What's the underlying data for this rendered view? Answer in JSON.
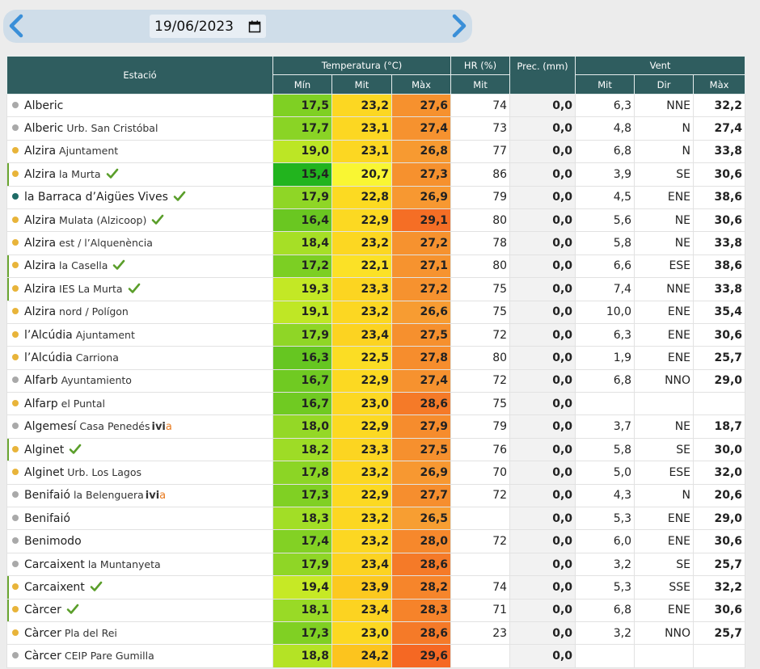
{
  "date_bar": {
    "date_value": "19/06/2023",
    "prev_icon": "chevron-left-icon",
    "next_icon": "chevron-right-icon",
    "calendar_icon": "calendar-icon"
  },
  "colors": {
    "header_bg": "#2f5d5f",
    "dot_yellow": "#e8b43a",
    "dot_gray": "#a9a9a9",
    "dot_teal": "#1f6b66",
    "check_green": "#5a9e2a"
  },
  "table": {
    "headers": {
      "station": "Estació",
      "temperature": "Temperatura (°C)",
      "humidity": "HR (%)",
      "precipitation": "Prec. (mm)",
      "wind": "Vent",
      "t_min": "Mín",
      "t_mit": "Mit",
      "t_max": "Màx",
      "hr_mit": "Mit",
      "w_mit": "Mit",
      "w_dir": "Dir",
      "w_max": "Màx"
    },
    "rows": [
      {
        "name": "Alberic",
        "sub": "",
        "ivia": false,
        "check": false,
        "dot": "gray",
        "hl": false,
        "tmin": "17,5",
        "tmit": "23,2",
        "tmax": "27,6",
        "hr": "74",
        "prec": "0,0",
        "wmit": "6,3",
        "wdir": "NNE",
        "wmax": "32,2",
        "cmin": "#7fd023",
        "cmit": "#fcd722",
        "cmax": "#f6912e"
      },
      {
        "name": "Alberic",
        "sub": "Urb. San Cristóbal",
        "ivia": false,
        "check": false,
        "dot": "gray",
        "hl": false,
        "tmin": "17,7",
        "tmit": "23,1",
        "tmax": "27,4",
        "hr": "73",
        "prec": "0,0",
        "wmit": "4,8",
        "wdir": "N",
        "wmax": "27,4",
        "cmin": "#8ad425",
        "cmit": "#fcd722",
        "cmax": "#f6922f"
      },
      {
        "name": "Alzira",
        "sub": "Ajuntament",
        "ivia": false,
        "check": false,
        "dot": "yellow",
        "hl": false,
        "tmin": "19,0",
        "tmit": "23,1",
        "tmax": "26,8",
        "hr": "77",
        "prec": "0,0",
        "wmit": "6,8",
        "wdir": "N",
        "wmax": "33,8",
        "cmin": "#bce625",
        "cmit": "#fcd722",
        "cmax": "#f79a31"
      },
      {
        "name": "Alzira",
        "sub": "la Murta",
        "ivia": false,
        "check": true,
        "dot": "yellow",
        "hl": true,
        "tmin": "15,4",
        "tmit": "20,7",
        "tmax": "27,3",
        "hr": "86",
        "prec": "0,0",
        "wmit": "3,9",
        "wdir": "SE",
        "wmax": "30,6",
        "cmin": "#22b41e",
        "cmit": "#f9f633",
        "cmax": "#f6912e"
      },
      {
        "name": "la Barraca d’Aigües Vives",
        "sub": "",
        "ivia": false,
        "check": true,
        "dot": "teal",
        "hl": false,
        "tmin": "17,9",
        "tmit": "22,8",
        "tmax": "26,9",
        "hr": "79",
        "prec": "0,0",
        "wmit": "4,5",
        "wdir": "ENE",
        "wmax": "38,6",
        "cmin": "#8fd626",
        "cmit": "#fcda22",
        "cmax": "#f79831"
      },
      {
        "name": "Alzira",
        "sub": "Mulata (Alzicoop)",
        "ivia": false,
        "check": true,
        "dot": "yellow",
        "hl": false,
        "tmin": "16,4",
        "tmit": "22,9",
        "tmax": "29,1",
        "hr": "80",
        "prec": "0,0",
        "wmit": "5,6",
        "wdir": "NE",
        "wmax": "30,6",
        "cmin": "#6ac721",
        "cmit": "#fcd922",
        "cmax": "#f56e25"
      },
      {
        "name": "Alzira",
        "sub": "est / l’Alquenència",
        "ivia": false,
        "check": false,
        "dot": "yellow",
        "hl": false,
        "tmin": "18,4",
        "tmit": "23,2",
        "tmax": "27,2",
        "hr": "78",
        "prec": "0,0",
        "wmit": "5,8",
        "wdir": "NE",
        "wmax": "33,8",
        "cmin": "#a6df26",
        "cmit": "#fcd722",
        "cmax": "#f6922f"
      },
      {
        "name": "Alzira",
        "sub": "la Casella",
        "ivia": false,
        "check": true,
        "dot": "yellow",
        "hl": true,
        "tmin": "17,2",
        "tmit": "22,1",
        "tmax": "27,1",
        "hr": "80",
        "prec": "0,0",
        "wmit": "6,6",
        "wdir": "ESE",
        "wmax": "38,6",
        "cmin": "#7ccf23",
        "cmit": "#fbe126",
        "cmax": "#f6932f"
      },
      {
        "name": "Alzira",
        "sub": "IES La Murta",
        "ivia": false,
        "check": true,
        "dot": "yellow",
        "hl": true,
        "tmin": "19,3",
        "tmit": "23,3",
        "tmax": "27,2",
        "hr": "75",
        "prec": "0,0",
        "wmit": "7,4",
        "wdir": "NNE",
        "wmax": "33,8",
        "cmin": "#c3e825",
        "cmit": "#fcd521",
        "cmax": "#f6922f"
      },
      {
        "name": "Alzira",
        "sub": "nord / Polígon",
        "ivia": false,
        "check": false,
        "dot": "yellow",
        "hl": false,
        "tmin": "19,1",
        "tmit": "23,2",
        "tmax": "26,6",
        "hr": "75",
        "prec": "0,0",
        "wmit": "10,0",
        "wdir": "ENE",
        "wmax": "35,4",
        "cmin": "#bfe725",
        "cmit": "#fcd722",
        "cmax": "#f79c32"
      },
      {
        "name": "l’Alcúdia",
        "sub": "Ajuntament",
        "ivia": false,
        "check": false,
        "dot": "yellow",
        "hl": false,
        "tmin": "17,9",
        "tmit": "23,4",
        "tmax": "27,5",
        "hr": "72",
        "prec": "0,0",
        "wmit": "6,3",
        "wdir": "ENE",
        "wmax": "30,6",
        "cmin": "#8fd626",
        "cmit": "#fcd321",
        "cmax": "#f6902e"
      },
      {
        "name": "l’Alcúdia",
        "sub": "Carriona",
        "ivia": false,
        "check": false,
        "dot": "yellow",
        "hl": false,
        "tmin": "16,3",
        "tmit": "22,5",
        "tmax": "27,8",
        "hr": "80",
        "prec": "0,0",
        "wmit": "1,9",
        "wdir": "ENE",
        "wmax": "25,7",
        "cmin": "#66c621",
        "cmit": "#fbdd24",
        "cmax": "#f68d2d"
      },
      {
        "name": "Alfarb",
        "sub": "Ayuntamiento",
        "ivia": false,
        "check": false,
        "dot": "gray",
        "hl": false,
        "tmin": "16,7",
        "tmit": "22,9",
        "tmax": "27,4",
        "hr": "72",
        "prec": "0,0",
        "wmit": "6,8",
        "wdir": "NNO",
        "wmax": "29,0",
        "cmin": "#70ca22",
        "cmit": "#fcd922",
        "cmax": "#f6922f"
      },
      {
        "name": "Alfarp",
        "sub": "el Puntal",
        "ivia": false,
        "check": false,
        "dot": "yellow",
        "hl": false,
        "tmin": "16,7",
        "tmit": "23,0",
        "tmax": "28,6",
        "hr": "75",
        "prec": "0,0",
        "wmit": "",
        "wdir": "",
        "wmax": "",
        "cmin": "#70ca22",
        "cmit": "#fcd822",
        "cmax": "#f57a28"
      },
      {
        "name": "Algemesí",
        "sub": "Casa Penedés",
        "ivia": true,
        "check": false,
        "dot": "gray",
        "hl": false,
        "tmin": "18,0",
        "tmit": "22,9",
        "tmax": "27,9",
        "hr": "79",
        "prec": "0,0",
        "wmit": "3,7",
        "wdir": "NE",
        "wmax": "18,7",
        "cmin": "#94d826",
        "cmit": "#fcd922",
        "cmax": "#f68c2d"
      },
      {
        "name": "Alginet",
        "sub": "",
        "ivia": false,
        "check": true,
        "dot": "yellow",
        "hl": true,
        "tmin": "18,2",
        "tmit": "23,3",
        "tmax": "27,5",
        "hr": "76",
        "prec": "0,0",
        "wmit": "5,8",
        "wdir": "SE",
        "wmax": "30,0",
        "cmin": "#9edc26",
        "cmit": "#fcd521",
        "cmax": "#f6902e"
      },
      {
        "name": "Alginet",
        "sub": "Urb. Los Lagos",
        "ivia": false,
        "check": false,
        "dot": "yellow",
        "hl": false,
        "tmin": "17,8",
        "tmit": "23,2",
        "tmax": "26,9",
        "hr": "70",
        "prec": "0,0",
        "wmit": "5,0",
        "wdir": "ESE",
        "wmax": "32,0",
        "cmin": "#8cd525",
        "cmit": "#fcd722",
        "cmax": "#f79831"
      },
      {
        "name": "Benifaió",
        "sub": "la Belenguera",
        "ivia": true,
        "check": false,
        "dot": "gray",
        "hl": false,
        "tmin": "17,3",
        "tmit": "22,9",
        "tmax": "27,7",
        "hr": "72",
        "prec": "0,0",
        "wmit": "4,3",
        "wdir": "N",
        "wmax": "20,6",
        "cmin": "#80d023",
        "cmit": "#fcd922",
        "cmax": "#f68e2e"
      },
      {
        "name": "Benifaió",
        "sub": "",
        "ivia": false,
        "check": false,
        "dot": "gray",
        "hl": false,
        "tmin": "18,3",
        "tmit": "23,2",
        "tmax": "26,5",
        "hr": "",
        "prec": "0,0",
        "wmit": "5,3",
        "wdir": "ENE",
        "wmax": "29,0",
        "cmin": "#a2de26",
        "cmit": "#fcd722",
        "cmax": "#f79e32"
      },
      {
        "name": "Benimodo",
        "sub": "",
        "ivia": false,
        "check": false,
        "dot": "gray",
        "hl": false,
        "tmin": "17,4",
        "tmit": "23,2",
        "tmax": "28,0",
        "hr": "72",
        "prec": "0,0",
        "wmit": "6,0",
        "wdir": "ENE",
        "wmax": "30,6",
        "cmin": "#83d124",
        "cmit": "#fcd722",
        "cmax": "#f6882c"
      },
      {
        "name": "Carcaixent",
        "sub": "la Muntanyeta",
        "ivia": false,
        "check": false,
        "dot": "gray",
        "hl": false,
        "tmin": "17,9",
        "tmit": "23,4",
        "tmax": "28,6",
        "hr": "",
        "prec": "0,0",
        "wmit": "3,2",
        "wdir": "SE",
        "wmax": "25,7",
        "cmin": "#8fd626",
        "cmit": "#fcd321",
        "cmax": "#f57a28"
      },
      {
        "name": "Carcaixent",
        "sub": "",
        "ivia": false,
        "check": true,
        "dot": "yellow",
        "hl": true,
        "tmin": "19,4",
        "tmit": "23,9",
        "tmax": "28,2",
        "hr": "74",
        "prec": "0,0",
        "wmit": "5,3",
        "wdir": "SSE",
        "wmax": "32,2",
        "cmin": "#c6e925",
        "cmit": "#fcc91f",
        "cmax": "#f6852b"
      },
      {
        "name": "Càrcer",
        "sub": "",
        "ivia": false,
        "check": true,
        "dot": "yellow",
        "hl": true,
        "tmin": "18,1",
        "tmit": "23,4",
        "tmax": "28,3",
        "hr": "71",
        "prec": "0,0",
        "wmit": "6,8",
        "wdir": "ENE",
        "wmax": "30,6",
        "cmin": "#99da26",
        "cmit": "#fcd321",
        "cmax": "#f6832a"
      },
      {
        "name": "Càrcer",
        "sub": "Pla del Rei",
        "ivia": false,
        "check": false,
        "dot": "yellow",
        "hl": false,
        "tmin": "17,3",
        "tmit": "23,0",
        "tmax": "28,6",
        "hr": "23",
        "prec": "0,0",
        "wmit": "3,2",
        "wdir": "NNO",
        "wmax": "25,7",
        "cmin": "#80d023",
        "cmit": "#fcd822",
        "cmax": "#f57a28"
      },
      {
        "name": "Càrcer",
        "sub": "CEIP Pare Gumilla",
        "ivia": false,
        "check": false,
        "dot": "gray",
        "hl": false,
        "tmin": "18,8",
        "tmit": "24,2",
        "tmax": "29,6",
        "hr": "",
        "prec": "0,0",
        "wmit": "",
        "wdir": "",
        "wmax": "",
        "cmin": "#b4e325",
        "cmit": "#fcc41e",
        "cmax": "#f56823"
      }
    ]
  }
}
